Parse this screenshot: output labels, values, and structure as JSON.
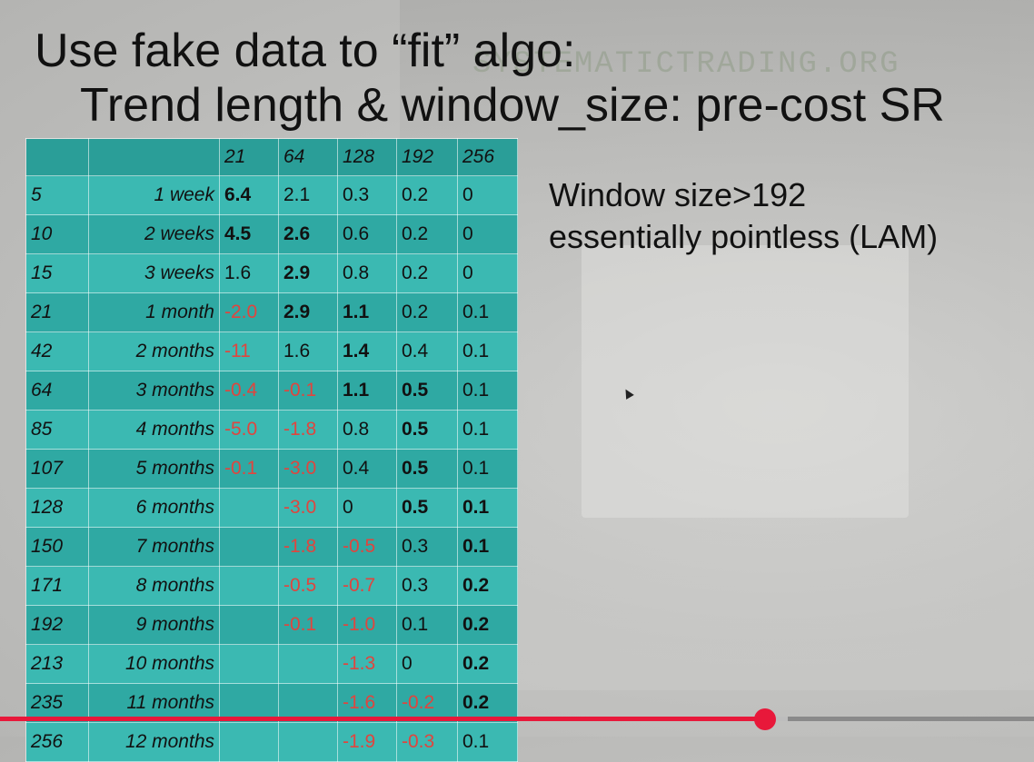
{
  "slide": {
    "title_line1": "Use fake data to “fit” algo:",
    "title_line2": "Trend length & window_size: pre-cost SR",
    "watermark": "SYSTEMATICTRADING.ORG",
    "note_line1": "Window size>192",
    "note_line2": "essentially pointless (LAM)"
  },
  "table": {
    "header": [
      "",
      "",
      "21",
      "64",
      "128",
      "192",
      "256"
    ],
    "rows": [
      {
        "cells": [
          "5",
          "1 week",
          "6.4",
          "2.1",
          "0.3",
          "0.2",
          "0"
        ],
        "bold": [
          2
        ],
        "neg": []
      },
      {
        "cells": [
          "10",
          "2 weeks",
          "4.5",
          "2.6",
          "0.6",
          "0.2",
          "0"
        ],
        "bold": [
          2,
          3
        ],
        "neg": []
      },
      {
        "cells": [
          "15",
          "3 weeks",
          "1.6",
          "2.9",
          "0.8",
          "0.2",
          "0"
        ],
        "bold": [
          3
        ],
        "neg": []
      },
      {
        "cells": [
          "21",
          "1 month",
          "-2.0",
          "2.9",
          "1.1",
          "0.2",
          "0.1"
        ],
        "bold": [
          3,
          4
        ],
        "neg": [
          2
        ]
      },
      {
        "cells": [
          "42",
          "2 months",
          "-11",
          "1.6",
          "1.4",
          "0.4",
          "0.1"
        ],
        "bold": [
          4
        ],
        "neg": [
          2
        ]
      },
      {
        "cells": [
          "64",
          "3 months",
          "-0.4",
          "-0.1",
          "1.1",
          "0.5",
          "0.1"
        ],
        "bold": [
          4,
          5
        ],
        "neg": [
          2,
          3
        ]
      },
      {
        "cells": [
          "85",
          "4 months",
          "-5.0",
          "-1.8",
          "0.8",
          "0.5",
          "0.1"
        ],
        "bold": [
          5
        ],
        "neg": [
          2,
          3
        ]
      },
      {
        "cells": [
          "107",
          "5 months",
          "-0.1",
          "-3.0",
          "0.4",
          "0.5",
          "0.1"
        ],
        "bold": [
          5
        ],
        "neg": [
          2,
          3
        ]
      },
      {
        "cells": [
          "128",
          "6 months",
          "",
          "-3.0",
          "0",
          "0.5",
          "0.1"
        ],
        "bold": [
          5,
          6
        ],
        "neg": [
          3
        ]
      },
      {
        "cells": [
          "150",
          "7 months",
          "",
          "-1.8",
          "-0.5",
          "0.3",
          "0.1"
        ],
        "bold": [
          6
        ],
        "neg": [
          3,
          4
        ]
      },
      {
        "cells": [
          "171",
          "8 months",
          "",
          "-0.5",
          "-0.7",
          "0.3",
          "0.2"
        ],
        "bold": [
          6
        ],
        "neg": [
          3,
          4
        ]
      },
      {
        "cells": [
          "192",
          "9 months",
          "",
          "-0.1",
          "-1.0",
          "0.1",
          "0.2"
        ],
        "bold": [
          6
        ],
        "neg": [
          3,
          4
        ]
      },
      {
        "cells": [
          "213",
          "10 months",
          "",
          "",
          "-1.3",
          "0",
          "0.2"
        ],
        "bold": [
          6
        ],
        "neg": [
          4
        ]
      },
      {
        "cells": [
          "235",
          "11 months",
          "",
          "",
          "-1.6",
          "-0.2",
          "0.2"
        ],
        "bold": [
          6
        ],
        "neg": [
          4,
          5
        ]
      },
      {
        "cells": [
          "256",
          "12 months",
          "",
          "",
          "-1.9",
          "-0.3",
          "0.1"
        ],
        "bold": [],
        "neg": [
          4,
          5
        ]
      }
    ]
  },
  "player": {
    "progress_fraction": 0.74,
    "buffered_fraction": 0.762,
    "played_color": "#e8183a"
  }
}
